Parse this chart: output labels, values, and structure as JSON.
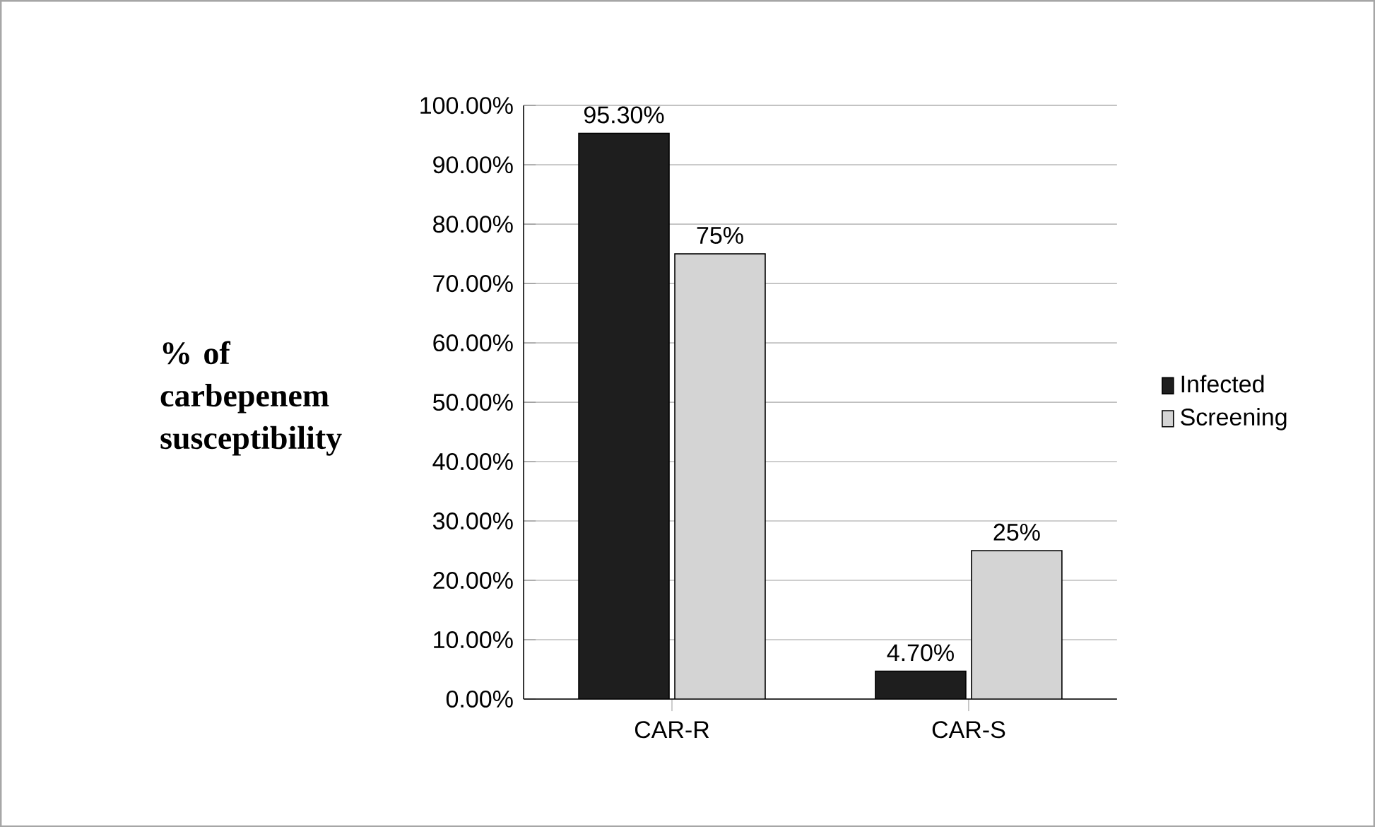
{
  "chart_data": {
    "type": "bar",
    "ylabel": "% of carbepenem susceptibility",
    "categories": [
      "CAR-R",
      "CAR-S"
    ],
    "series": [
      {
        "name": "Infected",
        "color": "#1e1e1e",
        "values": [
          95.3,
          4.7
        ],
        "value_labels": [
          "95.30%",
          "4.70%"
        ]
      },
      {
        "name": "Screening",
        "color": "#d4d4d4",
        "values": [
          75,
          25
        ],
        "value_labels": [
          "75%",
          "25%"
        ]
      }
    ],
    "ylim": [
      0,
      100
    ],
    "yticks": [
      {
        "value": 0,
        "label": "0.00%"
      },
      {
        "value": 10,
        "label": "10.00%"
      },
      {
        "value": 20,
        "label": "20.00%"
      },
      {
        "value": 30,
        "label": "30.00%"
      },
      {
        "value": 40,
        "label": "40.00%"
      },
      {
        "value": 50,
        "label": "50.00%"
      },
      {
        "value": 60,
        "label": "60.00%"
      },
      {
        "value": 70,
        "label": "70.00%"
      },
      {
        "value": 80,
        "label": "80.00%"
      },
      {
        "value": 90,
        "label": "90.00%"
      },
      {
        "value": 100,
        "label": "100.00%"
      }
    ],
    "grid": "y",
    "legend": "right"
  }
}
